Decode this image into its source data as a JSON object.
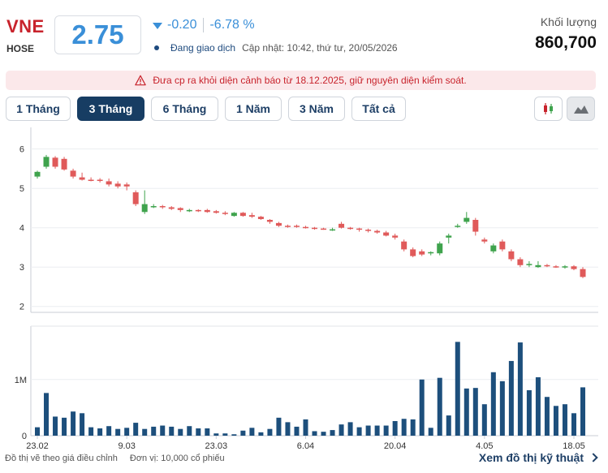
{
  "header": {
    "ticker": "VNE",
    "exchange": "HOSE",
    "price": "2.75",
    "change": "-0.20",
    "change_pct": "-6.78 %",
    "trading_status": "Đang giao dịch",
    "updated": "Cập nhật: 10:42, thứ tư, 20/05/2026",
    "volume_label": "Khối lượng",
    "volume_value": "860,700",
    "down_color": "#3a8fd8"
  },
  "warning": {
    "text": "Đưa cp ra khỏi diện cảnh báo từ 18.12.2025, giữ nguyên diện kiểm soát.",
    "icon": "warning-triangle-icon"
  },
  "range_tabs": [
    {
      "label": "1 Tháng",
      "active": false
    },
    {
      "label": "3 Tháng",
      "active": true
    },
    {
      "label": "6 Tháng",
      "active": false
    },
    {
      "label": "1 Năm",
      "active": false
    },
    {
      "label": "3 Năm",
      "active": false
    },
    {
      "label": "Tất cả",
      "active": false
    }
  ],
  "chart_type_buttons": [
    {
      "icon": "candlestick-icon",
      "active": false
    },
    {
      "icon": "mountain-area-icon",
      "active": true
    }
  ],
  "chart_data": {
    "type": "candlestick",
    "colors": {
      "up": "#3fa34d",
      "down": "#e05a5a",
      "volume": "#1d4f7c"
    },
    "price_axis": {
      "ticks": [
        2,
        3,
        4,
        5,
        6
      ],
      "range": [
        1.85,
        6.55
      ]
    },
    "volume_axis": {
      "ticks": [
        0,
        1000000
      ],
      "tick_labels": [
        "0",
        "1M"
      ],
      "range": [
        0,
        1950000
      ]
    },
    "x_ticks": [
      {
        "label": "23.02",
        "index": 0
      },
      {
        "label": "9.03",
        "index": 10
      },
      {
        "label": "23.03",
        "index": 20
      },
      {
        "label": "6.04",
        "index": 30
      },
      {
        "label": "20.04",
        "index": 40
      },
      {
        "label": "4.05",
        "index": 50
      },
      {
        "label": "18.05",
        "index": 60
      }
    ],
    "candles": [
      {
        "o": 5.3,
        "h": 5.45,
        "l": 5.25,
        "c": 5.42,
        "v": 150000
      },
      {
        "o": 5.55,
        "h": 5.85,
        "l": 5.5,
        "c": 5.8,
        "v": 760000
      },
      {
        "o": 5.78,
        "h": 5.82,
        "l": 5.5,
        "c": 5.55,
        "v": 340000
      },
      {
        "o": 5.75,
        "h": 5.8,
        "l": 5.45,
        "c": 5.48,
        "v": 320000
      },
      {
        "o": 5.45,
        "h": 5.5,
        "l": 5.25,
        "c": 5.3,
        "v": 430000
      },
      {
        "o": 5.28,
        "h": 5.4,
        "l": 5.2,
        "c": 5.22,
        "v": 400000
      },
      {
        "o": 5.22,
        "h": 5.28,
        "l": 5.18,
        "c": 5.2,
        "v": 150000
      },
      {
        "o": 5.22,
        "h": 5.26,
        "l": 5.15,
        "c": 5.2,
        "v": 130000
      },
      {
        "o": 5.18,
        "h": 5.25,
        "l": 5.05,
        "c": 5.1,
        "v": 170000
      },
      {
        "o": 5.12,
        "h": 5.18,
        "l": 5.0,
        "c": 5.05,
        "v": 120000
      },
      {
        "o": 5.1,
        "h": 5.15,
        "l": 4.95,
        "c": 5.05,
        "v": 140000
      },
      {
        "o": 4.9,
        "h": 4.95,
        "l": 4.55,
        "c": 4.6,
        "v": 230000
      },
      {
        "o": 4.4,
        "h": 4.95,
        "l": 4.35,
        "c": 4.6,
        "v": 120000
      },
      {
        "o": 4.55,
        "h": 4.6,
        "l": 4.5,
        "c": 4.55,
        "v": 160000
      },
      {
        "o": 4.55,
        "h": 4.58,
        "l": 4.48,
        "c": 4.52,
        "v": 180000
      },
      {
        "o": 4.52,
        "h": 4.55,
        "l": 4.45,
        "c": 4.48,
        "v": 160000
      },
      {
        "o": 4.5,
        "h": 4.52,
        "l": 4.4,
        "c": 4.45,
        "v": 120000
      },
      {
        "o": 4.45,
        "h": 4.48,
        "l": 4.4,
        "c": 4.45,
        "v": 170000
      },
      {
        "o": 4.45,
        "h": 4.47,
        "l": 4.4,
        "c": 4.42,
        "v": 130000
      },
      {
        "o": 4.45,
        "h": 4.48,
        "l": 4.38,
        "c": 4.4,
        "v": 130000
      },
      {
        "o": 4.42,
        "h": 4.45,
        "l": 4.36,
        "c": 4.38,
        "v": 40000
      },
      {
        "o": 4.38,
        "h": 4.42,
        "l": 4.32,
        "c": 4.35,
        "v": 40000
      },
      {
        "o": 4.3,
        "h": 4.4,
        "l": 4.28,
        "c": 4.38,
        "v": 25000
      },
      {
        "o": 4.38,
        "h": 4.4,
        "l": 4.28,
        "c": 4.3,
        "v": 90000
      },
      {
        "o": 4.32,
        "h": 4.38,
        "l": 4.25,
        "c": 4.28,
        "v": 140000
      },
      {
        "o": 4.28,
        "h": 4.3,
        "l": 4.2,
        "c": 4.22,
        "v": 60000
      },
      {
        "o": 4.2,
        "h": 4.22,
        "l": 4.1,
        "c": 4.15,
        "v": 120000
      },
      {
        "o": 4.12,
        "h": 4.15,
        "l": 4.02,
        "c": 4.05,
        "v": 320000
      },
      {
        "o": 4.05,
        "h": 4.08,
        "l": 4.0,
        "c": 4.02,
        "v": 240000
      },
      {
        "o": 4.05,
        "h": 4.08,
        "l": 4.0,
        "c": 4.02,
        "v": 160000
      },
      {
        "o": 4.02,
        "h": 4.05,
        "l": 3.98,
        "c": 4.0,
        "v": 290000
      },
      {
        "o": 4.0,
        "h": 4.02,
        "l": 3.95,
        "c": 3.98,
        "v": 80000
      },
      {
        "o": 3.98,
        "h": 4.0,
        "l": 3.95,
        "c": 3.97,
        "v": 70000
      },
      {
        "o": 3.95,
        "h": 4.0,
        "l": 3.92,
        "c": 3.96,
        "v": 100000
      },
      {
        "o": 4.1,
        "h": 4.15,
        "l": 3.98,
        "c": 4.0,
        "v": 200000
      },
      {
        "o": 4.0,
        "h": 4.02,
        "l": 3.95,
        "c": 3.98,
        "v": 240000
      },
      {
        "o": 3.98,
        "h": 4.0,
        "l": 3.9,
        "c": 3.95,
        "v": 150000
      },
      {
        "o": 3.95,
        "h": 3.98,
        "l": 3.88,
        "c": 3.92,
        "v": 180000
      },
      {
        "o": 3.92,
        "h": 3.95,
        "l": 3.85,
        "c": 3.88,
        "v": 180000
      },
      {
        "o": 3.88,
        "h": 3.92,
        "l": 3.78,
        "c": 3.8,
        "v": 180000
      },
      {
        "o": 3.8,
        "h": 3.85,
        "l": 3.7,
        "c": 3.75,
        "v": 260000
      },
      {
        "o": 3.65,
        "h": 3.7,
        "l": 3.4,
        "c": 3.45,
        "v": 300000
      },
      {
        "o": 3.45,
        "h": 3.5,
        "l": 3.25,
        "c": 3.28,
        "v": 290000
      },
      {
        "o": 3.4,
        "h": 3.45,
        "l": 3.28,
        "c": 3.32,
        "v": 1000000
      },
      {
        "o": 3.35,
        "h": 3.4,
        "l": 3.3,
        "c": 3.38,
        "v": 140000
      },
      {
        "o": 3.35,
        "h": 3.65,
        "l": 3.3,
        "c": 3.6,
        "v": 1030000
      },
      {
        "o": 3.75,
        "h": 3.85,
        "l": 3.6,
        "c": 3.8,
        "v": 360000
      },
      {
        "o": 4.05,
        "h": 4.1,
        "l": 4.0,
        "c": 4.05,
        "v": 1670000
      },
      {
        "o": 4.15,
        "h": 4.4,
        "l": 4.1,
        "c": 4.25,
        "v": 840000
      },
      {
        "o": 4.2,
        "h": 4.25,
        "l": 3.8,
        "c": 3.9,
        "v": 850000
      },
      {
        "o": 3.7,
        "h": 3.75,
        "l": 3.6,
        "c": 3.65,
        "v": 560000
      },
      {
        "o": 3.4,
        "h": 3.6,
        "l": 3.35,
        "c": 3.55,
        "v": 1130000
      },
      {
        "o": 3.65,
        "h": 3.7,
        "l": 3.4,
        "c": 3.45,
        "v": 970000
      },
      {
        "o": 3.4,
        "h": 3.45,
        "l": 3.15,
        "c": 3.2,
        "v": 1330000
      },
      {
        "o": 3.2,
        "h": 3.25,
        "l": 3.0,
        "c": 3.05,
        "v": 1660000
      },
      {
        "o": 3.05,
        "h": 3.15,
        "l": 3.0,
        "c": 3.08,
        "v": 810000
      },
      {
        "o": 3.0,
        "h": 3.15,
        "l": 2.98,
        "c": 3.05,
        "v": 1040000
      },
      {
        "o": 3.05,
        "h": 3.08,
        "l": 3.0,
        "c": 3.03,
        "v": 690000
      },
      {
        "o": 3.02,
        "h": 3.05,
        "l": 2.98,
        "c": 3.0,
        "v": 530000
      },
      {
        "o": 3.0,
        "h": 3.05,
        "l": 2.96,
        "c": 3.02,
        "v": 560000
      },
      {
        "o": 3.02,
        "h": 3.05,
        "l": 2.92,
        "c": 2.95,
        "v": 400000
      },
      {
        "o": 2.95,
        "h": 3.0,
        "l": 2.72,
        "c": 2.75,
        "v": 860700
      }
    ]
  },
  "footer": {
    "note1": "Đồ thị vẽ theo giá điều chỉnh",
    "note2": "Đơn vị: 10,000 cổ phiếu",
    "link": "Xem đồ thị kỹ thuật"
  }
}
